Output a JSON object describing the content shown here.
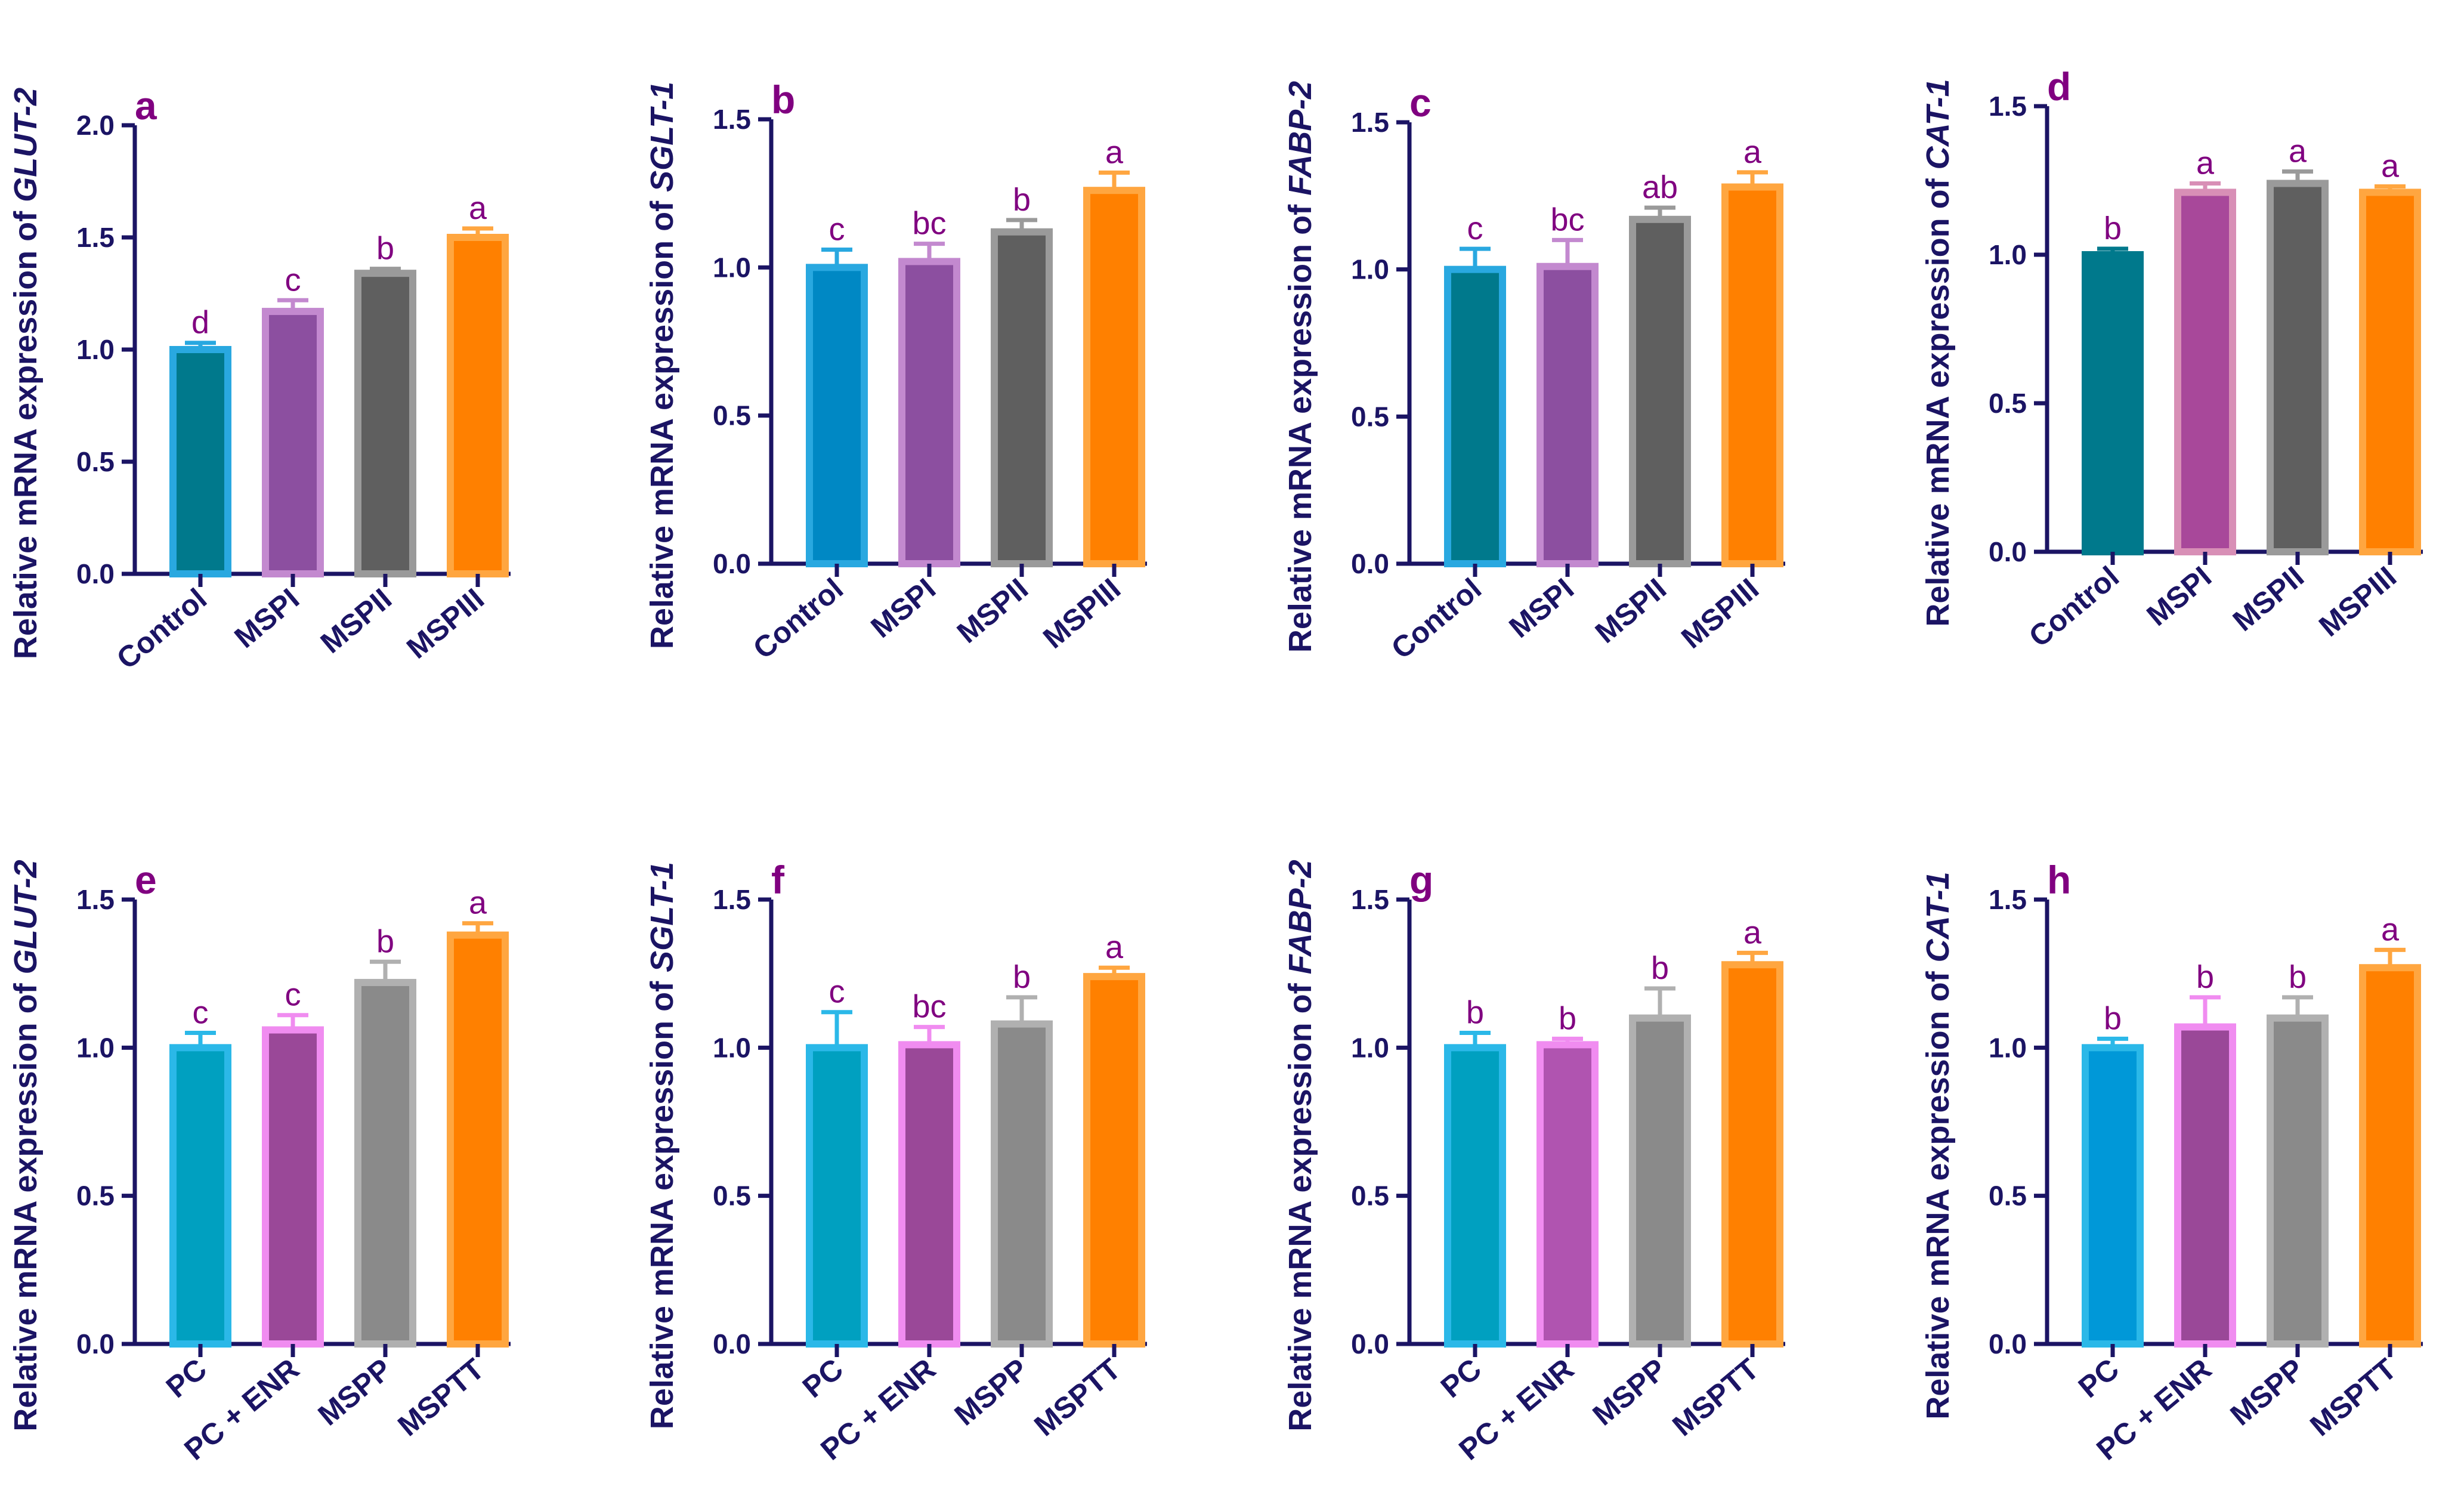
{
  "chart_data": [
    {
      "type": "bar",
      "panel": "a",
      "ylabel_prefix": "Relative mRNA expression of ",
      "gene": "GLUT-2",
      "ylim": [
        0,
        2.0
      ],
      "yticks": [
        "0.0",
        "0.5",
        "1.0",
        "1.5",
        "2.0"
      ],
      "categories": [
        "Control",
        "MSPI",
        "MSPII",
        "MSPIII"
      ],
      "values": [
        1.0,
        1.17,
        1.34,
        1.5
      ],
      "errors": [
        0.03,
        0.05,
        0.02,
        0.04
      ],
      "letters": [
        "d",
        "c",
        "b",
        "a"
      ],
      "colors": [
        "#00798c",
        "#8c4fa0",
        "#5f5f5f",
        "#ff8000"
      ],
      "edge_colors": [
        "#29a8e0",
        "#c389cf",
        "#9a9a9a",
        "#ffa640"
      ]
    },
    {
      "type": "bar",
      "panel": "b",
      "ylabel_prefix": "Relative mRNA expression of ",
      "gene": "SGLT-1",
      "ylim": [
        0,
        1.5
      ],
      "yticks": [
        "0.0",
        "0.5",
        "1.0",
        "1.5"
      ],
      "categories": [
        "Control",
        "MSPI",
        "MSPII",
        "MSPIII"
      ],
      "values": [
        1.0,
        1.02,
        1.12,
        1.26
      ],
      "errors": [
        0.06,
        0.06,
        0.04,
        0.06
      ],
      "letters": [
        "c",
        "bc",
        "b",
        "a"
      ],
      "colors": [
        "#0088c4",
        "#8c4fa0",
        "#5f5f5f",
        "#ff8000"
      ],
      "edge_colors": [
        "#29a8e0",
        "#c389cf",
        "#9a9a9a",
        "#ffa640"
      ]
    },
    {
      "type": "bar",
      "panel": "c",
      "ylabel_prefix": "Relative mRNA expression of ",
      "gene": "FABP-2",
      "ylim": [
        0,
        1.5
      ],
      "yticks": [
        "0.0",
        "0.5",
        "1.0",
        "1.5"
      ],
      "categories": [
        "Control",
        "MSPI",
        "MSPII",
        "MSPIII"
      ],
      "values": [
        1.0,
        1.01,
        1.17,
        1.28
      ],
      "errors": [
        0.07,
        0.09,
        0.04,
        0.05
      ],
      "letters": [
        "c",
        "bc",
        "ab",
        "a"
      ],
      "colors": [
        "#00798c",
        "#8c4fa0",
        "#5f5f5f",
        "#ff8000"
      ],
      "edge_colors": [
        "#29a8e0",
        "#c389cf",
        "#9a9a9a",
        "#ffa640"
      ]
    },
    {
      "type": "bar",
      "panel": "d",
      "ylabel_prefix": "Relative mRNA expression of ",
      "gene": "CAT-1",
      "ylim": [
        0,
        1.5
      ],
      "yticks": [
        "0.0",
        "0.5",
        "1.0",
        "1.5"
      ],
      "categories": [
        "Control",
        "MSPI",
        "MSPII",
        "MSPIII"
      ],
      "values": [
        1.0,
        1.21,
        1.24,
        1.21
      ],
      "errors": [
        0.02,
        0.03,
        0.04,
        0.02
      ],
      "letters": [
        "b",
        "a",
        "a",
        "a"
      ],
      "colors": [
        "#00798c",
        "#a8489a",
        "#5f5f5f",
        "#ff8000"
      ],
      "edge_colors": [
        "#00798c",
        "#d88fb6",
        "#9a9a9a",
        "#ffa640"
      ]
    },
    {
      "type": "bar",
      "panel": "e",
      "ylabel_prefix": "Relative mRNA expression of ",
      "gene": "GLUT-2",
      "ylim": [
        0,
        1.5
      ],
      "yticks": [
        "0.0",
        "0.5",
        "1.0",
        "1.5"
      ],
      "categories": [
        "PC",
        "PC + ENR",
        "MSPP",
        "MSPTT"
      ],
      "values": [
        1.0,
        1.06,
        1.22,
        1.38
      ],
      "errors": [
        0.05,
        0.05,
        0.07,
        0.04
      ],
      "letters": [
        "c",
        "c",
        "b",
        "a"
      ],
      "colors": [
        "#00a0c0",
        "#9a4898",
        "#8a8a8a",
        "#ff8000"
      ],
      "edge_colors": [
        "#2bb8e8",
        "#f08cf0",
        "#b0b0b0",
        "#ffa640"
      ]
    },
    {
      "type": "bar",
      "panel": "f",
      "ylabel_prefix": "Relative mRNA expression of ",
      "gene": "SGLT-1",
      "ylim": [
        0,
        1.5
      ],
      "yticks": [
        "0.0",
        "0.5",
        "1.0",
        "1.5"
      ],
      "categories": [
        "PC",
        "PC + ENR",
        "MSPP",
        "MSPTT"
      ],
      "values": [
        1.0,
        1.01,
        1.08,
        1.24
      ],
      "errors": [
        0.12,
        0.06,
        0.09,
        0.03
      ],
      "letters": [
        "c",
        "bc",
        "b",
        "a"
      ],
      "colors": [
        "#00a0c0",
        "#9a4898",
        "#8a8a8a",
        "#ff8000"
      ],
      "edge_colors": [
        "#2bb8e8",
        "#f08cf0",
        "#b0b0b0",
        "#ffa640"
      ]
    },
    {
      "type": "bar",
      "panel": "g",
      "ylabel_prefix": "Relative mRNA expression of ",
      "gene": "FABP-2",
      "ylim": [
        0,
        1.5
      ],
      "yticks": [
        "0.0",
        "0.5",
        "1.0",
        "1.5"
      ],
      "categories": [
        "PC",
        "PC + ENR",
        "MSPP",
        "MSPTT"
      ],
      "values": [
        1.0,
        1.01,
        1.1,
        1.28
      ],
      "errors": [
        0.05,
        0.02,
        0.1,
        0.04
      ],
      "letters": [
        "b",
        "b",
        "b",
        "a"
      ],
      "colors": [
        "#00a0c0",
        "#b054b0",
        "#8a8a8a",
        "#ff8000"
      ],
      "edge_colors": [
        "#2bb8e8",
        "#f08cf0",
        "#b0b0b0",
        "#ffa640"
      ]
    },
    {
      "type": "bar",
      "panel": "h",
      "ylabel_prefix": "Relative mRNA expression of ",
      "gene": "CAT-1",
      "ylim": [
        0,
        1.5
      ],
      "yticks": [
        "0.0",
        "0.5",
        "1.0",
        "1.5"
      ],
      "categories": [
        "PC",
        "PC + ENR",
        "MSPP",
        "MSPTT"
      ],
      "values": [
        1.0,
        1.07,
        1.1,
        1.27
      ],
      "errors": [
        0.03,
        0.1,
        0.07,
        0.06
      ],
      "letters": [
        "b",
        "b",
        "b",
        "a"
      ],
      "colors": [
        "#0098d8",
        "#9a4898",
        "#8a8a8a",
        "#ff8000"
      ],
      "edge_colors": [
        "#2bb8e8",
        "#f08cf0",
        "#b0b0b0",
        "#ffa640"
      ]
    }
  ]
}
